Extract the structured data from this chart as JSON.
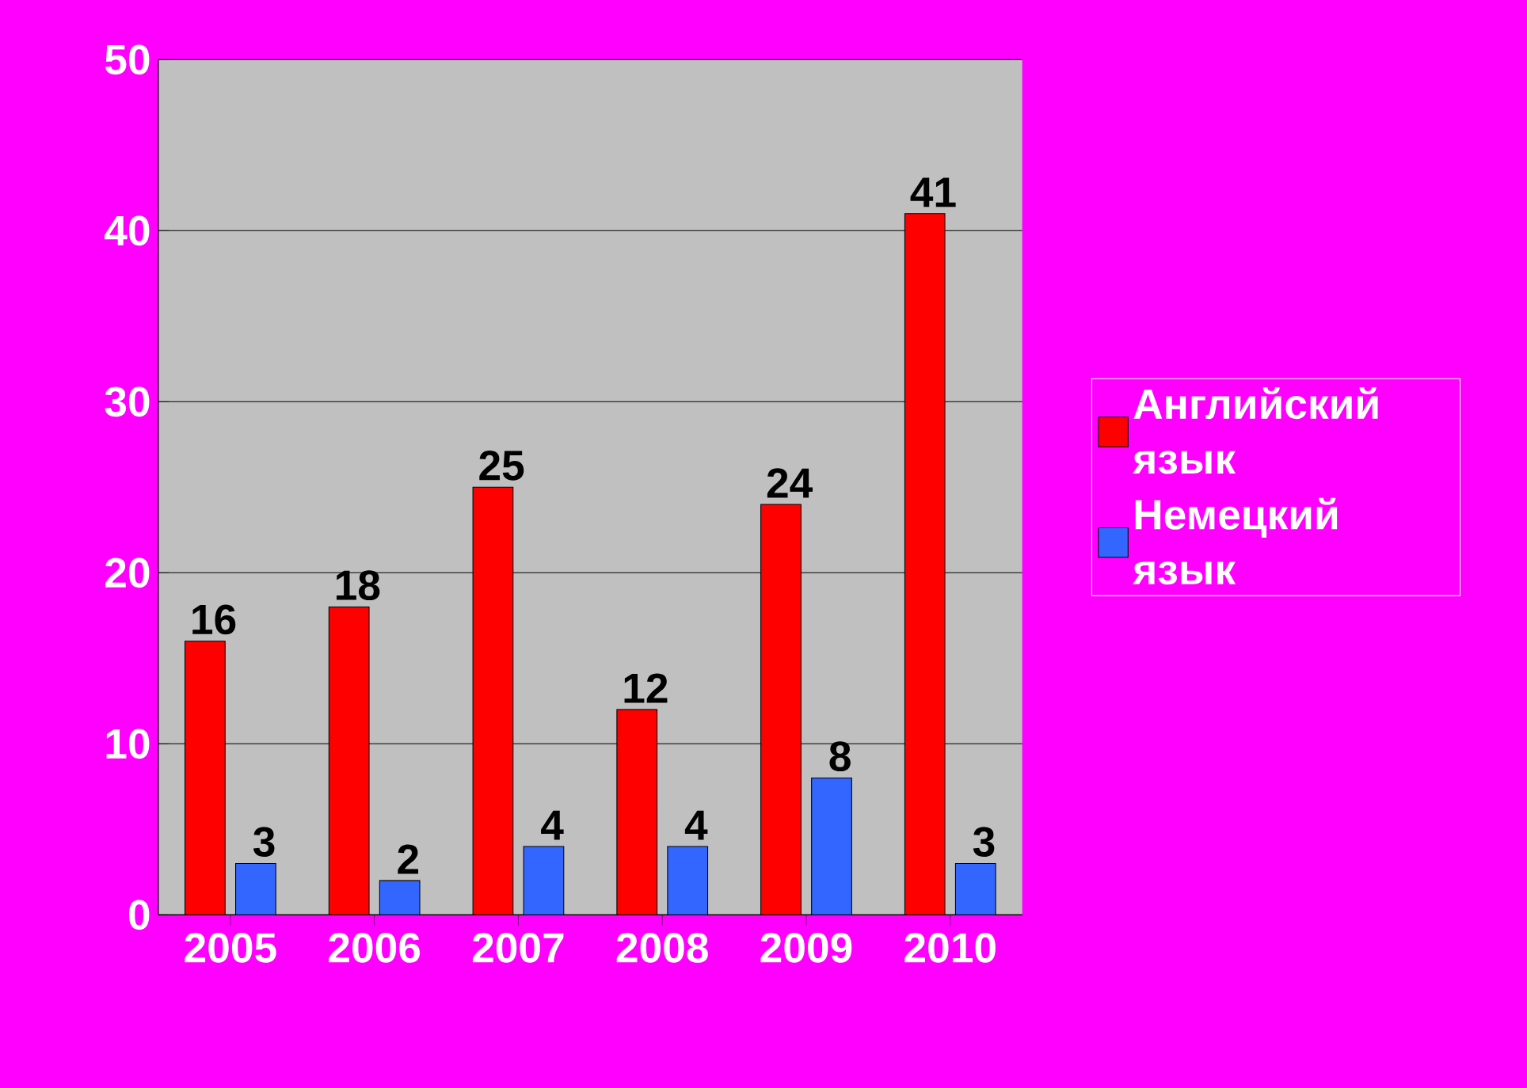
{
  "chart_data": {
    "type": "bar",
    "categories": [
      "2005",
      "2006",
      "2007",
      "2008",
      "2009",
      "2010"
    ],
    "series": [
      {
        "name": "Английский язык",
        "color": "#ff0000",
        "values": [
          16,
          18,
          25,
          12,
          24,
          41
        ]
      },
      {
        "name": "Немецкий язык",
        "color": "#3366ff",
        "values": [
          3,
          2,
          4,
          4,
          8,
          3
        ]
      }
    ],
    "ylim": [
      0,
      50
    ],
    "yticks": [
      0,
      10,
      20,
      30,
      40,
      50
    ],
    "grid": "y",
    "legend": "right",
    "data_labels": true
  }
}
